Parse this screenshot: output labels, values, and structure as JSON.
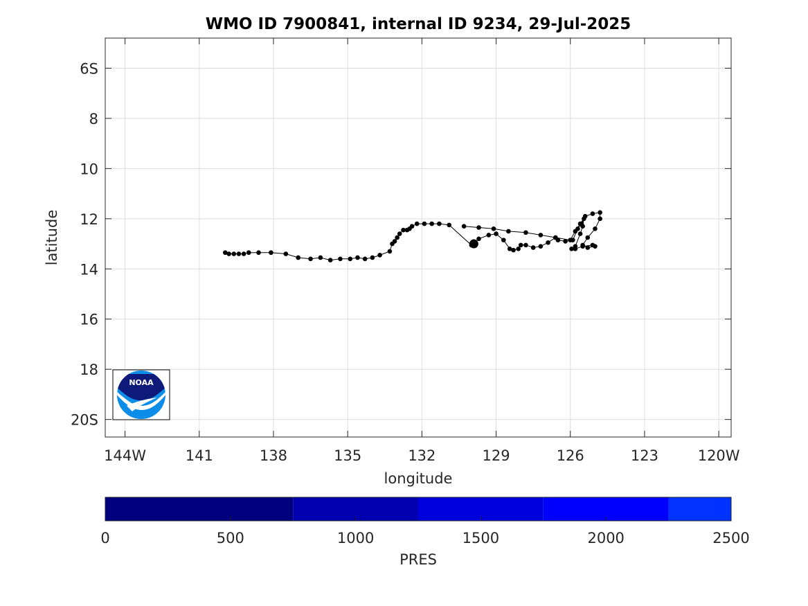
{
  "chart_data": {
    "type": "scatter",
    "title": "WMO ID 7900841, internal ID 9234, 29-Jul-2025",
    "xlabel": "longitude",
    "ylabel": "latitude",
    "xlim": [
      -144.8,
      -119.5
    ],
    "ylim": [
      -20.7,
      -4.8
    ],
    "xticks": [
      {
        "value": -144,
        "label": "144W"
      },
      {
        "value": -141,
        "label": "141"
      },
      {
        "value": -138,
        "label": "138"
      },
      {
        "value": -135,
        "label": "135"
      },
      {
        "value": -132,
        "label": "132"
      },
      {
        "value": -129,
        "label": "129"
      },
      {
        "value": -126,
        "label": "126"
      },
      {
        "value": -123,
        "label": "123"
      },
      {
        "value": -120,
        "label": "120W"
      }
    ],
    "yticks": [
      {
        "value": -6,
        "label": "6S"
      },
      {
        "value": -8,
        "label": "8"
      },
      {
        "value": -10,
        "label": "10"
      },
      {
        "value": -12,
        "label": "12"
      },
      {
        "value": -14,
        "label": "14"
      },
      {
        "value": -16,
        "label": "16"
      },
      {
        "value": -18,
        "label": "18"
      },
      {
        "value": -20,
        "label": "20S"
      }
    ],
    "grid": true,
    "start_point": {
      "lon": -129.9,
      "lat": -13.0
    },
    "track": [
      [
        -130.3,
        -12.3
      ],
      [
        -129.7,
        -12.35
      ],
      [
        -129.1,
        -12.4
      ],
      [
        -128.5,
        -12.5
      ],
      [
        -127.8,
        -12.55
      ],
      [
        -127.2,
        -12.65
      ],
      [
        -126.6,
        -12.75
      ],
      [
        -126.0,
        -12.85
      ],
      [
        -125.8,
        -12.5
      ],
      [
        -125.6,
        -12.2
      ],
      [
        -125.4,
        -11.9
      ],
      [
        -125.1,
        -11.8
      ],
      [
        -124.8,
        -11.75
      ],
      [
        -124.8,
        -12.0
      ],
      [
        -125.0,
        -12.4
      ],
      [
        -125.3,
        -12.75
      ],
      [
        -125.5,
        -13.05
      ],
      [
        -125.3,
        -13.15
      ],
      [
        -125.0,
        -13.1
      ],
      [
        -125.1,
        -13.05
      ],
      [
        -125.5,
        -13.1
      ],
      [
        -125.8,
        -13.2
      ],
      [
        -125.95,
        -13.2
      ],
      [
        -125.8,
        -13.1
      ],
      [
        -125.6,
        -12.6
      ],
      [
        -125.5,
        -12.3
      ],
      [
        -125.45,
        -12.0
      ],
      [
        -125.55,
        -12.2
      ],
      [
        -125.7,
        -12.4
      ],
      [
        -125.9,
        -12.85
      ],
      [
        -126.2,
        -12.9
      ],
      [
        -126.5,
        -12.85
      ],
      [
        -126.6,
        -12.75
      ],
      [
        -126.9,
        -12.95
      ],
      [
        -127.2,
        -13.1
      ],
      [
        -127.5,
        -13.15
      ],
      [
        -127.8,
        -13.05
      ],
      [
        -128.0,
        -13.05
      ],
      [
        -128.1,
        -13.2
      ],
      [
        -128.3,
        -13.25
      ],
      [
        -128.45,
        -13.2
      ],
      [
        -128.7,
        -12.85
      ],
      [
        -129.0,
        -12.6
      ],
      [
        -129.3,
        -12.65
      ],
      [
        -129.7,
        -12.8
      ],
      [
        -130.0,
        -13.05
      ],
      [
        -130.9,
        -12.25
      ],
      [
        -131.3,
        -12.2
      ],
      [
        -131.6,
        -12.2
      ],
      [
        -131.9,
        -12.2
      ],
      [
        -132.2,
        -12.2
      ],
      [
        -132.4,
        -12.3
      ],
      [
        -132.5,
        -12.4
      ],
      [
        -132.6,
        -12.45
      ],
      [
        -132.75,
        -12.45
      ],
      [
        -132.9,
        -12.6
      ],
      [
        -133.0,
        -12.75
      ],
      [
        -133.1,
        -12.9
      ],
      [
        -133.2,
        -13.0
      ],
      [
        -133.3,
        -13.3
      ],
      [
        -133.7,
        -13.45
      ],
      [
        -134.0,
        -13.55
      ],
      [
        -134.3,
        -13.6
      ],
      [
        -134.6,
        -13.55
      ],
      [
        -134.9,
        -13.6
      ],
      [
        -135.3,
        -13.6
      ],
      [
        -135.7,
        -13.65
      ],
      [
        -136.1,
        -13.55
      ],
      [
        -136.5,
        -13.6
      ],
      [
        -137.0,
        -13.55
      ],
      [
        -137.5,
        -13.4
      ],
      [
        -138.1,
        -13.35
      ],
      [
        -138.6,
        -13.35
      ],
      [
        -139.0,
        -13.35
      ],
      [
        -139.2,
        -13.4
      ],
      [
        -139.4,
        -13.4
      ],
      [
        -139.6,
        -13.4
      ],
      [
        -139.8,
        -13.4
      ],
      [
        -139.95,
        -13.35
      ]
    ],
    "colorbar": {
      "label": "PRES",
      "range": [
        0,
        2500
      ],
      "ticks": [
        {
          "value": 0,
          "label": "0"
        },
        {
          "value": 500,
          "label": "500"
        },
        {
          "value": 1000,
          "label": "1000"
        },
        {
          "value": 1500,
          "label": "1500"
        },
        {
          "value": 2000,
          "label": "2000"
        },
        {
          "value": 2500,
          "label": "2500"
        }
      ],
      "bands": [
        {
          "from": 0,
          "to": 750,
          "color": "#00007f"
        },
        {
          "from": 750,
          "to": 1250,
          "color": "#0000b0"
        },
        {
          "from": 1250,
          "to": 1750,
          "color": "#0000dc"
        },
        {
          "from": 1750,
          "to": 2250,
          "color": "#0000ff"
        },
        {
          "from": 2250,
          "to": 2500,
          "color": "#0033ff"
        }
      ]
    },
    "logo": {
      "text": "NOAA",
      "colors": {
        "dark": "#0d1a7a",
        "light": "#0b8de8"
      }
    }
  }
}
